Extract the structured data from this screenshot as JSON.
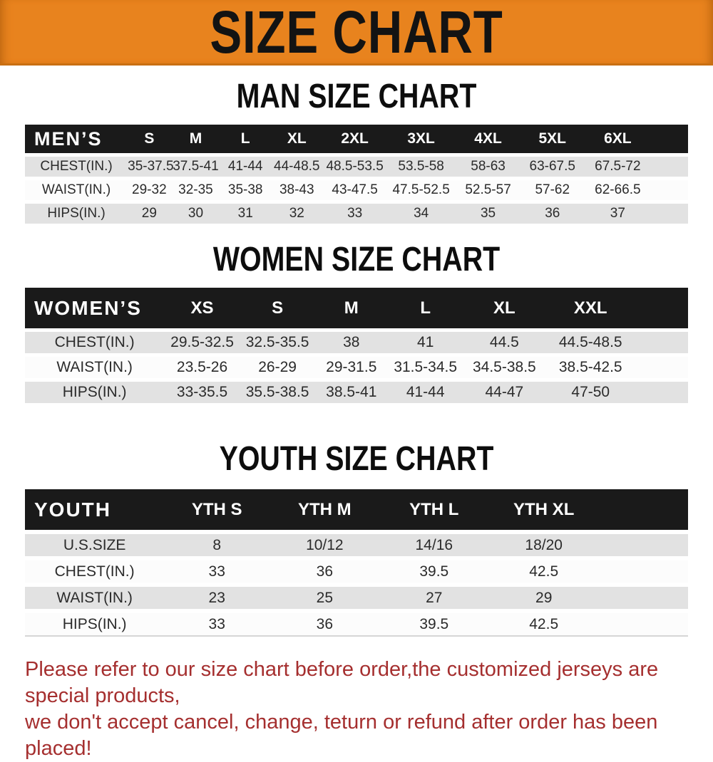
{
  "banner": {
    "title": "SIZE CHART"
  },
  "sections": [
    {
      "title": "MAN SIZE CHART",
      "table": {
        "label": "MEN’S",
        "columns": [
          "S",
          "M",
          "L",
          "XL",
          "2XL",
          "3XL",
          "4XL",
          "5XL",
          "6XL"
        ],
        "rows": [
          {
            "label": "CHEST(IN.)",
            "values": [
              "35-37.5",
              "37.5-41",
              "41-44",
              "44-48.5",
              "48.5-53.5",
              "53.5-58",
              "58-63",
              "63-67.5",
              "67.5-72"
            ]
          },
          {
            "label": "WAIST(IN.)",
            "values": [
              "29-32",
              "32-35",
              "35-38",
              "38-43",
              "43-47.5",
              "47.5-52.5",
              "52.5-57",
              "57-62",
              "62-66.5"
            ]
          },
          {
            "label": "HIPS(IN.)",
            "values": [
              "29",
              "30",
              "31",
              "32",
              "33",
              "34",
              "35",
              "36",
              "37"
            ]
          }
        ]
      }
    },
    {
      "title": "WOMEN SIZE CHART",
      "table": {
        "label": "WOMEN’S",
        "columns": [
          "XS",
          "S",
          "M",
          "L",
          "XL",
          "XXL"
        ],
        "rows": [
          {
            "label": "CHEST(IN.)",
            "values": [
              "29.5-32.5",
              "32.5-35.5",
              "38",
              "41",
              "44.5",
              "44.5-48.5"
            ]
          },
          {
            "label": "WAIST(IN.)",
            "values": [
              "23.5-26",
              "26-29",
              "29-31.5",
              "31.5-34.5",
              "34.5-38.5",
              "38.5-42.5"
            ]
          },
          {
            "label": "HIPS(IN.)",
            "values": [
              "33-35.5",
              "35.5-38.5",
              "38.5-41",
              "41-44",
              "44-47",
              "47-50"
            ]
          }
        ]
      }
    },
    {
      "title": "YOUTH SIZE CHART",
      "table": {
        "label": "YOUTH",
        "columns": [
          "YTH S",
          "YTH M",
          "YTH L",
          "YTH XL"
        ],
        "rows": [
          {
            "label": "U.S.SIZE",
            "values": [
              "8",
              "10/12",
              "14/16",
              "18/20"
            ]
          },
          {
            "label": "CHEST(IN.)",
            "values": [
              "33",
              "36",
              "39.5",
              "42.5"
            ]
          },
          {
            "label": "WAIST(IN.)",
            "values": [
              "23",
              "25",
              "27",
              "29"
            ]
          },
          {
            "label": "HIPS(IN.)",
            "values": [
              "33",
              "36",
              "39.5",
              "42.5"
            ]
          }
        ]
      }
    }
  ],
  "footnote": {
    "line1": "Please refer to our size chart before order,the customized jerseys are special products,",
    "line2": "we don't accept cancel, change, teturn or refund after order has been placed!"
  },
  "colors": {
    "banner_bg": "#E8831E",
    "banner_border": "#C96F12",
    "banner_text": "#131313",
    "table_header_bg": "#1A1A1A",
    "table_header_text": "#FFFFFF",
    "stripe_gray": "#E2E2E2",
    "stripe_white": "#FCFCFC",
    "footnote_red": "#A52F2F"
  }
}
